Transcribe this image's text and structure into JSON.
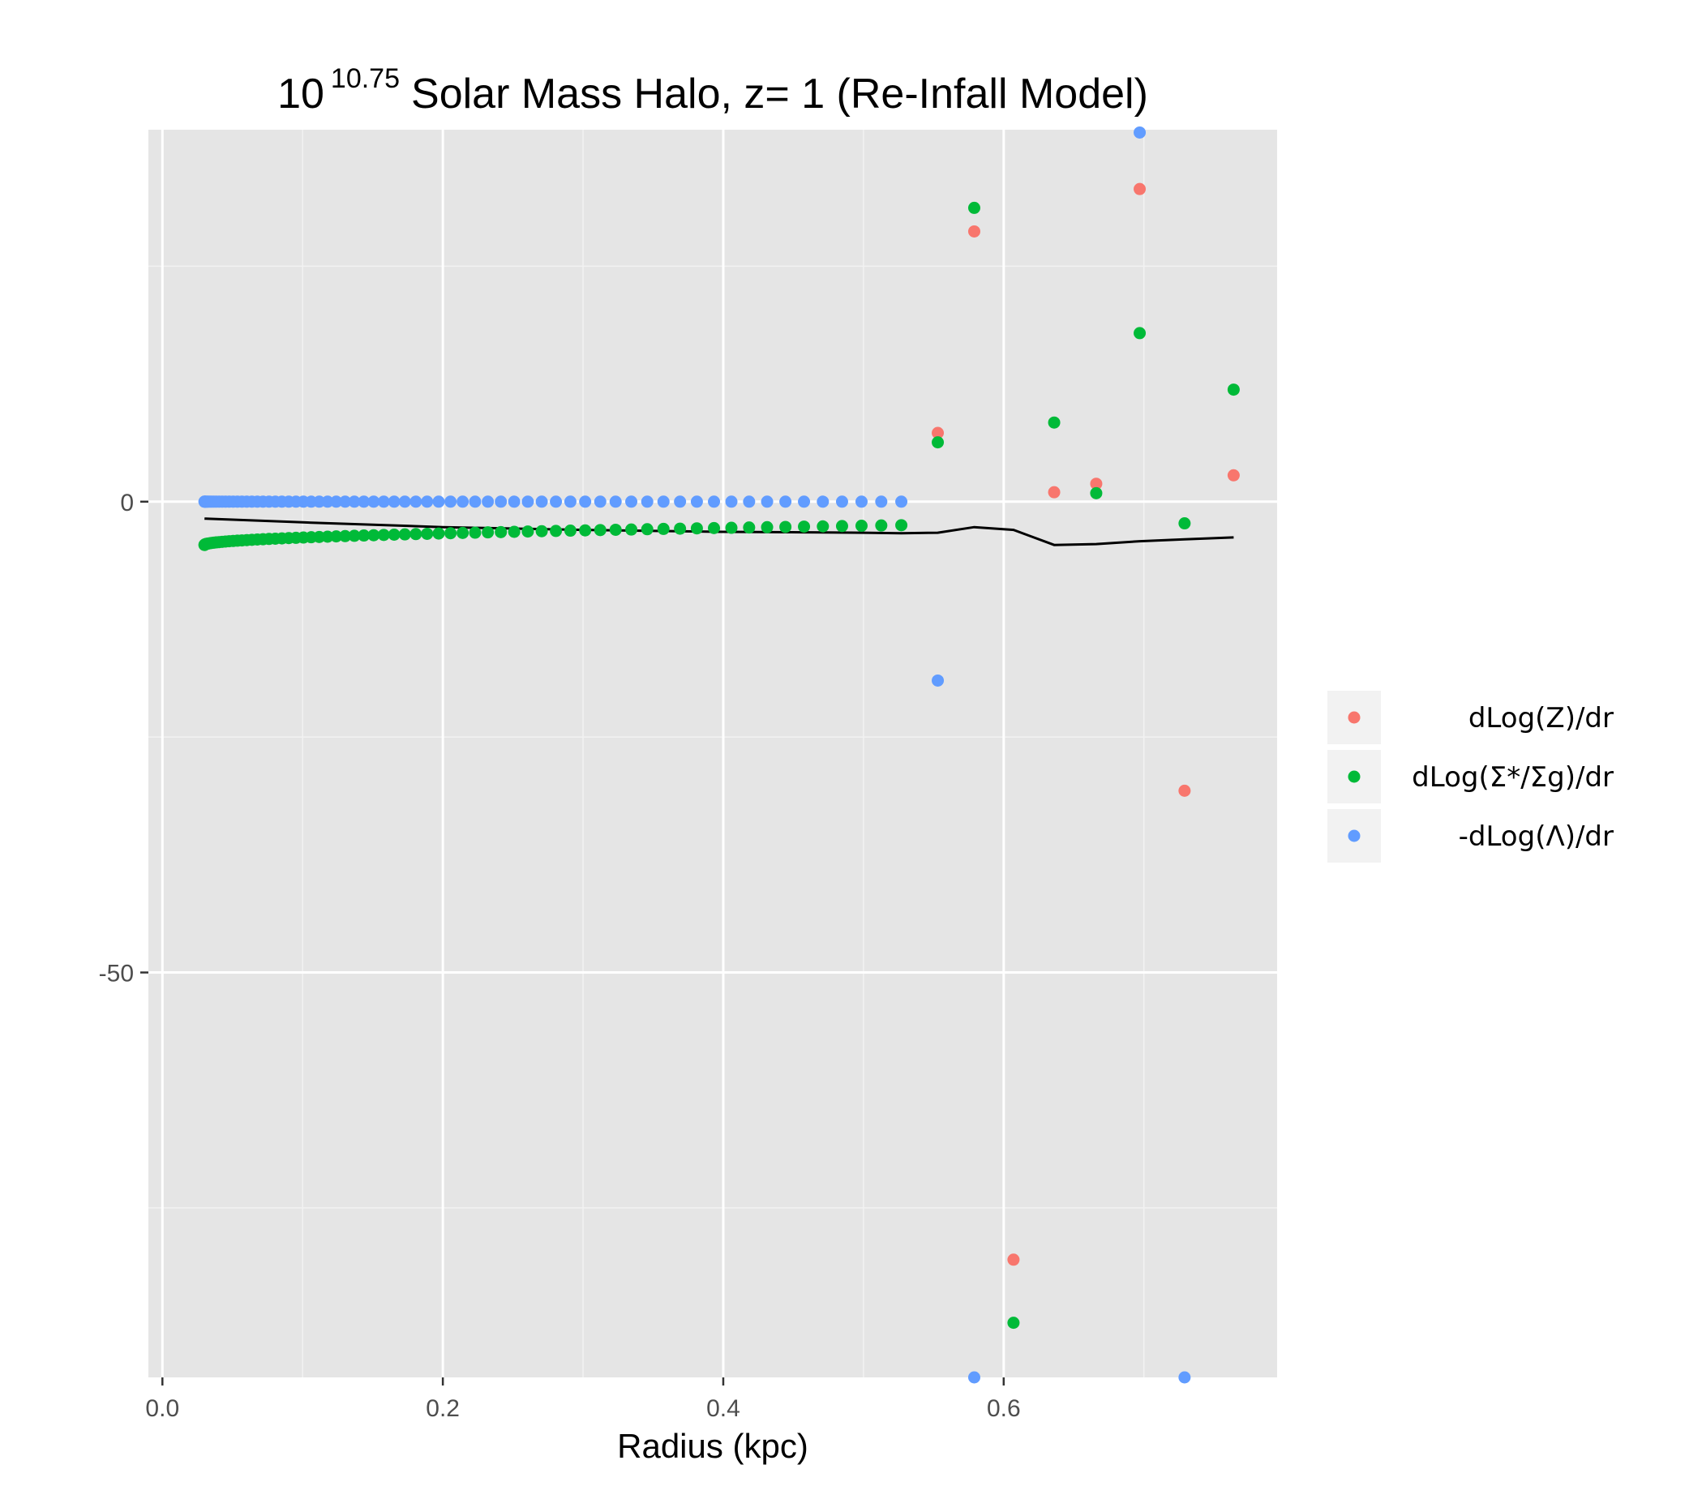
{
  "chart_data": {
    "type": "scatter",
    "title": {
      "base": "10",
      "exponent": "10.75",
      "text": "Solar Mass Halo, z= 1 (Re-Infall Model)"
    },
    "xlabel": "Radius (kpc)",
    "ylabel": "",
    "xlim": [
      -0.01,
      0.795
    ],
    "ylim": [
      -93,
      39.5
    ],
    "x_ticks": [
      0.0,
      0.2,
      0.4,
      0.6
    ],
    "x_tick_labels": [
      "0.0",
      "0.2",
      "0.4",
      "0.6"
    ],
    "y_ticks": [
      0,
      -50
    ],
    "y_tick_labels": [
      "0",
      "-50"
    ],
    "grid": true,
    "legend": "right",
    "series": [
      {
        "name": "dLog(Z)/dr",
        "color": "#F8766D",
        "points": [
          [
            0.553,
            7.3
          ],
          [
            0.579,
            28.7
          ],
          [
            0.607,
            -80.5
          ],
          [
            0.636,
            1.0
          ],
          [
            0.666,
            1.9
          ],
          [
            0.697,
            33.2
          ],
          [
            0.729,
            -30.7
          ],
          [
            0.764,
            2.8
          ]
        ]
      },
      {
        "name": "dLog(Σ*/Σg)/dr",
        "color": "#00BA38",
        "points": [
          [
            0.553,
            6.3
          ],
          [
            0.579,
            31.2
          ],
          [
            0.607,
            -87.2
          ],
          [
            0.636,
            8.4
          ],
          [
            0.666,
            0.9
          ],
          [
            0.697,
            17.9
          ],
          [
            0.729,
            -2.3
          ],
          [
            0.764,
            11.9
          ]
        ]
      },
      {
        "name": "-dLog(Λ)/dr",
        "color": "#619CFF",
        "points": [
          [
            0.553,
            -19.0
          ],
          [
            0.579,
            -93.0
          ],
          [
            0.697,
            39.2
          ],
          [
            0.729,
            -93.0
          ]
        ]
      }
    ],
    "line": {
      "color": "#000000",
      "points": [
        [
          0.03,
          -1.8
        ],
        [
          0.1,
          -2.2
        ],
        [
          0.2,
          -2.7
        ],
        [
          0.3,
          -3.0
        ],
        [
          0.4,
          -3.2
        ],
        [
          0.5,
          -3.3
        ],
        [
          0.527,
          -3.35
        ],
        [
          0.553,
          -3.3
        ],
        [
          0.579,
          -2.7
        ],
        [
          0.607,
          -3.0
        ],
        [
          0.636,
          -4.6
        ],
        [
          0.666,
          -4.5
        ],
        [
          0.697,
          -4.2
        ],
        [
          0.729,
          -4.0
        ],
        [
          0.764,
          -3.8
        ]
      ]
    },
    "dense_series": {
      "x_start": 0.03,
      "x_end": 0.527,
      "count": 70,
      "x_scale": "quadratic",
      "blue_y": 0,
      "green_y_start": -4.6,
      "green_y_end": -2.5
    }
  }
}
